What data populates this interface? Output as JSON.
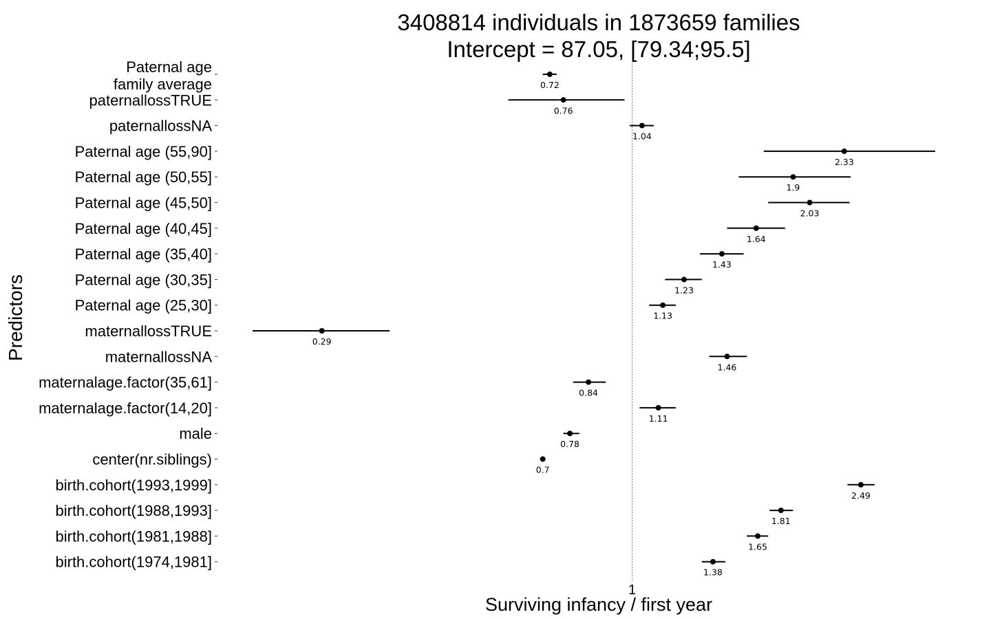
{
  "chart_data": {
    "type": "forest",
    "title": [
      "3408814 individuals in 1873659 families",
      "Intercept = 87.05, [79.34;95.5]"
    ],
    "xlabel": "Surviving infancy / first year",
    "ylabel": "Predictors",
    "reference_line": 1,
    "x_scale": "log",
    "xlim": [
      0.22,
      3.5
    ],
    "x_ticks": [
      {
        "value": 1,
        "label": "1"
      }
    ],
    "grid": false,
    "predictors": [
      {
        "label": [
          "Paternal age",
          "family average"
        ],
        "estimate": 0.72,
        "ci": [
          0.7,
          0.74
        ],
        "value_label": "0.72"
      },
      {
        "label": [
          "paternallossTRUE"
        ],
        "estimate": 0.76,
        "ci": [
          0.61,
          0.97
        ],
        "value_label": "0.76"
      },
      {
        "label": [
          "paternallossNA"
        ],
        "estimate": 1.04,
        "ci": [
          0.99,
          1.09
        ],
        "value_label": "1.04"
      },
      {
        "label": [
          "Paternal age (55,90]"
        ],
        "estimate": 2.33,
        "ci": [
          1.69,
          3.35
        ],
        "value_label": "2.33"
      },
      {
        "label": [
          "Paternal age (50,55]"
        ],
        "estimate": 1.9,
        "ci": [
          1.53,
          2.39
        ],
        "value_label": "1.9"
      },
      {
        "label": [
          "Paternal age (45,50]"
        ],
        "estimate": 2.03,
        "ci": [
          1.72,
          2.38
        ],
        "value_label": "2.03"
      },
      {
        "label": [
          "Paternal age (40,45]"
        ],
        "estimate": 1.64,
        "ci": [
          1.46,
          1.84
        ],
        "value_label": "1.64"
      },
      {
        "label": [
          "Paternal age (35,40]"
        ],
        "estimate": 1.43,
        "ci": [
          1.31,
          1.56
        ],
        "value_label": "1.43"
      },
      {
        "label": [
          "Paternal age (30,35]"
        ],
        "estimate": 1.23,
        "ci": [
          1.14,
          1.32
        ],
        "value_label": "1.23"
      },
      {
        "label": [
          "Paternal age (25,30]"
        ],
        "estimate": 1.13,
        "ci": [
          1.07,
          1.19
        ],
        "value_label": "1.13"
      },
      {
        "label": [
          "maternallossTRUE"
        ],
        "estimate": 0.29,
        "ci": [
          0.22,
          0.38
        ],
        "value_label": "0.29"
      },
      {
        "label": [
          "maternallossNA"
        ],
        "estimate": 1.46,
        "ci": [
          1.36,
          1.58
        ],
        "value_label": "1.46"
      },
      {
        "label": [
          "maternalage.factor(35,61]"
        ],
        "estimate": 0.84,
        "ci": [
          0.79,
          0.9
        ],
        "value_label": "0.84"
      },
      {
        "label": [
          "maternalage.factor(14,20]"
        ],
        "estimate": 1.11,
        "ci": [
          1.03,
          1.19
        ],
        "value_label": "1.11"
      },
      {
        "label": [
          "male"
        ],
        "estimate": 0.78,
        "ci": [
          0.76,
          0.81
        ],
        "value_label": "0.78"
      },
      {
        "label": [
          "center(nr.siblings)"
        ],
        "estimate": 0.7,
        "ci": [
          0.695,
          0.705
        ],
        "value_label": "0.7"
      },
      {
        "label": [
          "birth.cohort(1993,1999]"
        ],
        "estimate": 2.49,
        "ci": [
          2.36,
          2.63
        ],
        "value_label": "2.49"
      },
      {
        "label": [
          "birth.cohort(1988,1993]"
        ],
        "estimate": 1.81,
        "ci": [
          1.73,
          1.9
        ],
        "value_label": "1.81"
      },
      {
        "label": [
          "birth.cohort(1981,1988]"
        ],
        "estimate": 1.65,
        "ci": [
          1.58,
          1.72
        ],
        "value_label": "1.65"
      },
      {
        "label": [
          "birth.cohort(1974,1981]"
        ],
        "estimate": 1.38,
        "ci": [
          1.32,
          1.45
        ],
        "value_label": "1.38"
      }
    ]
  }
}
